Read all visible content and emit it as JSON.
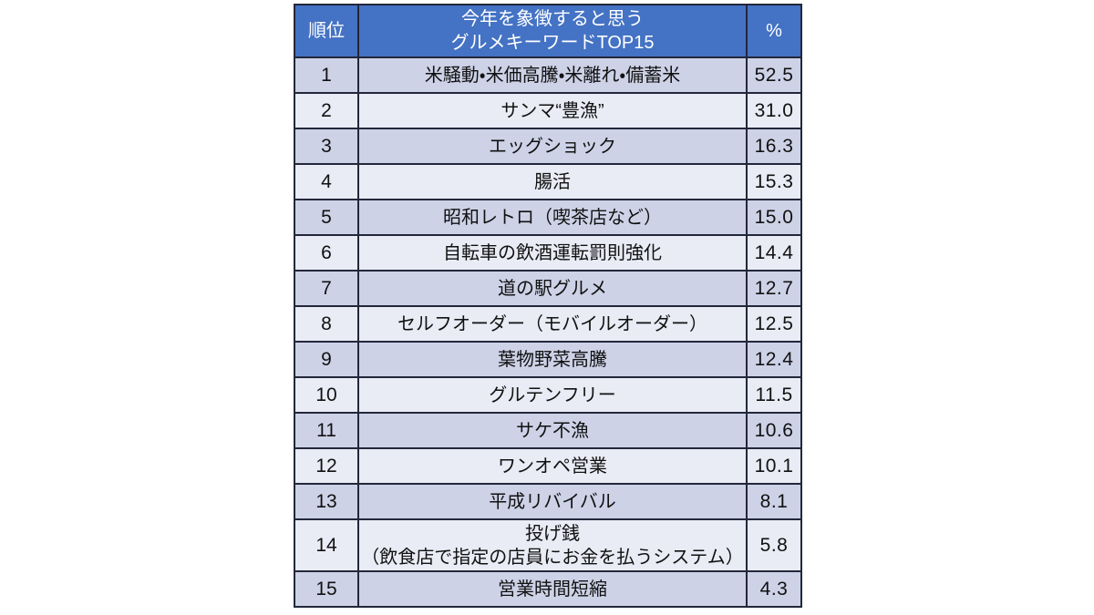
{
  "table": {
    "header": {
      "rank": "順位",
      "keyword_line1": "今年を象徴すると思う",
      "keyword_line2": "グルメキーワードTOP15",
      "percent": "%"
    },
    "rows": [
      {
        "rank": "1",
        "keyword": "米騒動・米価高騰・米離れ・備蓄米",
        "percent": "52.5"
      },
      {
        "rank": "2",
        "keyword": "サンマ“豊漁”",
        "percent": "31.0"
      },
      {
        "rank": "3",
        "keyword": "エッグショック",
        "percent": "16.3"
      },
      {
        "rank": "4",
        "keyword": "腸活",
        "percent": "15.3"
      },
      {
        "rank": "5",
        "keyword": "昭和レトロ（喫茶店など）",
        "percent": "15.0"
      },
      {
        "rank": "6",
        "keyword": "自転車の飲酒運転罰則強化",
        "percent": "14.4"
      },
      {
        "rank": "7",
        "keyword": "道の駅グルメ",
        "percent": "12.7"
      },
      {
        "rank": "8",
        "keyword": "セルフオーダー（モバイルオーダー）",
        "percent": "12.5"
      },
      {
        "rank": "9",
        "keyword": "葉物野菜高騰",
        "percent": "12.4"
      },
      {
        "rank": "10",
        "keyword": "グルテンフリー",
        "percent": "11.5"
      },
      {
        "rank": "11",
        "keyword": "サケ不漁",
        "percent": "10.6"
      },
      {
        "rank": "12",
        "keyword": "ワンオペ営業",
        "percent": "10.1"
      },
      {
        "rank": "13",
        "keyword": "平成リバイバル",
        "percent": "8.1"
      },
      {
        "rank": "14",
        "keyword": "投げ銭\n（飲食店で指定の店員にお金を払うシステム）",
        "percent": "5.8"
      },
      {
        "rank": "15",
        "keyword": "営業時間短縮",
        "percent": "4.3"
      }
    ]
  },
  "colors": {
    "header_bg": "#4472c4",
    "header_text": "#ffffff",
    "row_odd_bg": "#cdd2e7",
    "row_even_bg": "#e9ebf5",
    "border": "#23273a",
    "text": "#111111"
  },
  "chart_data": {
    "type": "table",
    "title": "今年を象徴すると思うグルメキーワードTOP15",
    "columns": [
      "順位",
      "今年を象徴すると思うグルメキーワードTOP15",
      "%"
    ],
    "categories": [
      "米騒動・米価高騰・米離れ・備蓄米",
      "サンマ“豊漁”",
      "エッグショック",
      "腸活",
      "昭和レトロ（喫茶店など）",
      "自転車の飲酒運転罰則強化",
      "道の駅グルメ",
      "セルフオーダー（モバイルオーダー）",
      "葉物野菜高騰",
      "グルテンフリー",
      "サケ不漁",
      "ワンオペ営業",
      "平成リバイバル",
      "投げ銭（飲食店で指定の店員にお金を払うシステム）",
      "営業時間短縮"
    ],
    "values": [
      52.5,
      31.0,
      16.3,
      15.3,
      15.0,
      14.4,
      12.7,
      12.5,
      12.4,
      11.5,
      10.6,
      10.1,
      8.1,
      5.8,
      4.3
    ],
    "value_unit": "%",
    "layout": "ranked-table, blue header row, alternating lavender stripes"
  }
}
